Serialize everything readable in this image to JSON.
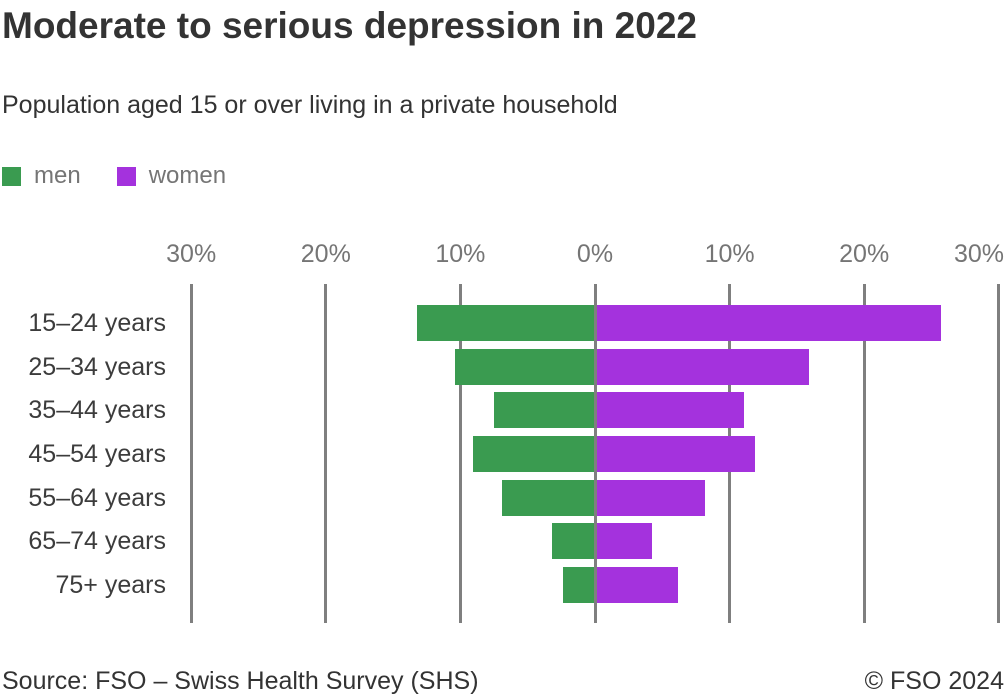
{
  "title": "Moderate to serious depression in 2022",
  "subtitle": "Population aged 15 or over living in a private household",
  "legend": {
    "items": [
      {
        "label": "men",
        "color": "#3a9b50"
      },
      {
        "label": "women",
        "color": "#a432dd"
      }
    ]
  },
  "footer": {
    "source": "Source: FSO – Swiss Health Survey (SHS)",
    "copyright": "© FSO 2024"
  },
  "colors": {
    "men": "#3a9b50",
    "women": "#a432dd",
    "gridline": "#7f7f7f",
    "axis_text": "#757575",
    "category_text": "#3c3c3c",
    "heading_text": "#333333"
  },
  "chart_data": {
    "type": "bar",
    "orientation": "horizontal-diverging",
    "title": "Moderate to serious depression in 2022",
    "subtitle": "Population aged 15 or over living in a private household",
    "categories": [
      "15–24 years",
      "25–34 years",
      "35–44 years",
      "45–54 years",
      "55–64 years",
      "65–74 years",
      "75+ years"
    ],
    "series": [
      {
        "name": "men",
        "direction": "left",
        "color": "#3a9b50",
        "values": [
          13.2,
          10.4,
          7.5,
          9.1,
          6.9,
          3.2,
          2.4
        ]
      },
      {
        "name": "women",
        "direction": "right",
        "color": "#a432dd",
        "values": [
          25.7,
          15.9,
          11.1,
          11.9,
          8.2,
          4.2,
          6.2
        ]
      }
    ],
    "x_axis": {
      "unit": "%",
      "range": [
        -30,
        30
      ],
      "tick_values": [
        -30,
        -20,
        -10,
        0,
        10,
        20,
        30
      ],
      "tick_labels": [
        "30%",
        "20%",
        "10%",
        "0%",
        "10%",
        "20%",
        "30%"
      ]
    },
    "grid": true,
    "legend_position": "top-left"
  }
}
